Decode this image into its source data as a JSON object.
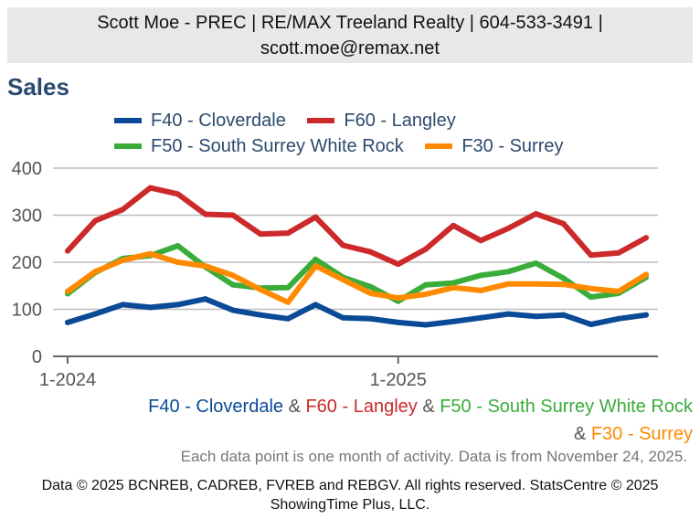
{
  "header": {
    "line1": "Scott Moe - PREC | RE/MAX Treeland Realty | 604-533-3491 |",
    "line2": "scott.moe@remax.net"
  },
  "chart_title": "Sales",
  "caption": {
    "s1": "F40 - Cloverdale",
    "amp1": " & ",
    "s2": "F60 - Langley",
    "amp2": " & ",
    "s3": "F50 - South Surrey White Rock",
    "amp3": " & ",
    "s4": "F30 - Surrey"
  },
  "note": "Each data point is one month of activity. Data is from November 24, 2025.",
  "footer": "Data © 2025 BCNREB, CADREB, FVREB and REBGV. All rights reserved. StatsCentre © 2025 ShowingTime Plus, LLC.",
  "chart_data": {
    "type": "line",
    "title": "Sales",
    "xlabel": "",
    "ylabel": "",
    "ylim": [
      0,
      400
    ],
    "yticks": [
      "0",
      "100",
      "200",
      "300",
      "400"
    ],
    "xtick_labels": [
      "1-2024",
      "1-2025"
    ],
    "xtick_index": [
      0,
      12
    ],
    "grid": true,
    "legend_position": "top",
    "x": [
      "Jan 2024",
      "Feb 2024",
      "Mar 2024",
      "Apr 2024",
      "May 2024",
      "Jun 2024",
      "Jul 2024",
      "Aug 2024",
      "Sep 2024",
      "Oct 2024",
      "Nov 2024",
      "Dec 2024",
      "Jan 2025",
      "Feb 2025",
      "Mar 2025",
      "Apr 2025",
      "May 2025",
      "Jun 2025",
      "Jul 2025",
      "Aug 2025",
      "Sep 2025",
      "Oct 2025"
    ],
    "series": [
      {
        "name": "F40 - Cloverdale",
        "color": "#0b4a96",
        "values": [
          72,
          90,
          110,
          104,
          110,
          122,
          98,
          88,
          80,
          110,
          82,
          80,
          72,
          67,
          74,
          82,
          90,
          85,
          88,
          68,
          80,
          88
        ]
      },
      {
        "name": "F60 - Langley",
        "color": "#cc2a2a",
        "values": [
          224,
          288,
          312,
          358,
          345,
          302,
          300,
          260,
          262,
          296,
          236,
          222,
          196,
          228,
          278,
          246,
          272,
          303,
          282,
          215,
          220,
          252
        ]
      },
      {
        "name": "F50 - South Surrey White Rock",
        "color": "#3aac3a",
        "values": [
          133,
          178,
          208,
          214,
          235,
          190,
          152,
          145,
          146,
          206,
          168,
          148,
          117,
          152,
          156,
          172,
          180,
          198,
          166,
          126,
          134,
          168
        ]
      },
      {
        "name": "F30 - Surrey",
        "color": "#ff8a00",
        "values": [
          138,
          180,
          204,
          218,
          200,
          192,
          172,
          142,
          115,
          192,
          163,
          134,
          124,
          132,
          146,
          140,
          154,
          154,
          153,
          144,
          138,
          174
        ]
      }
    ]
  }
}
